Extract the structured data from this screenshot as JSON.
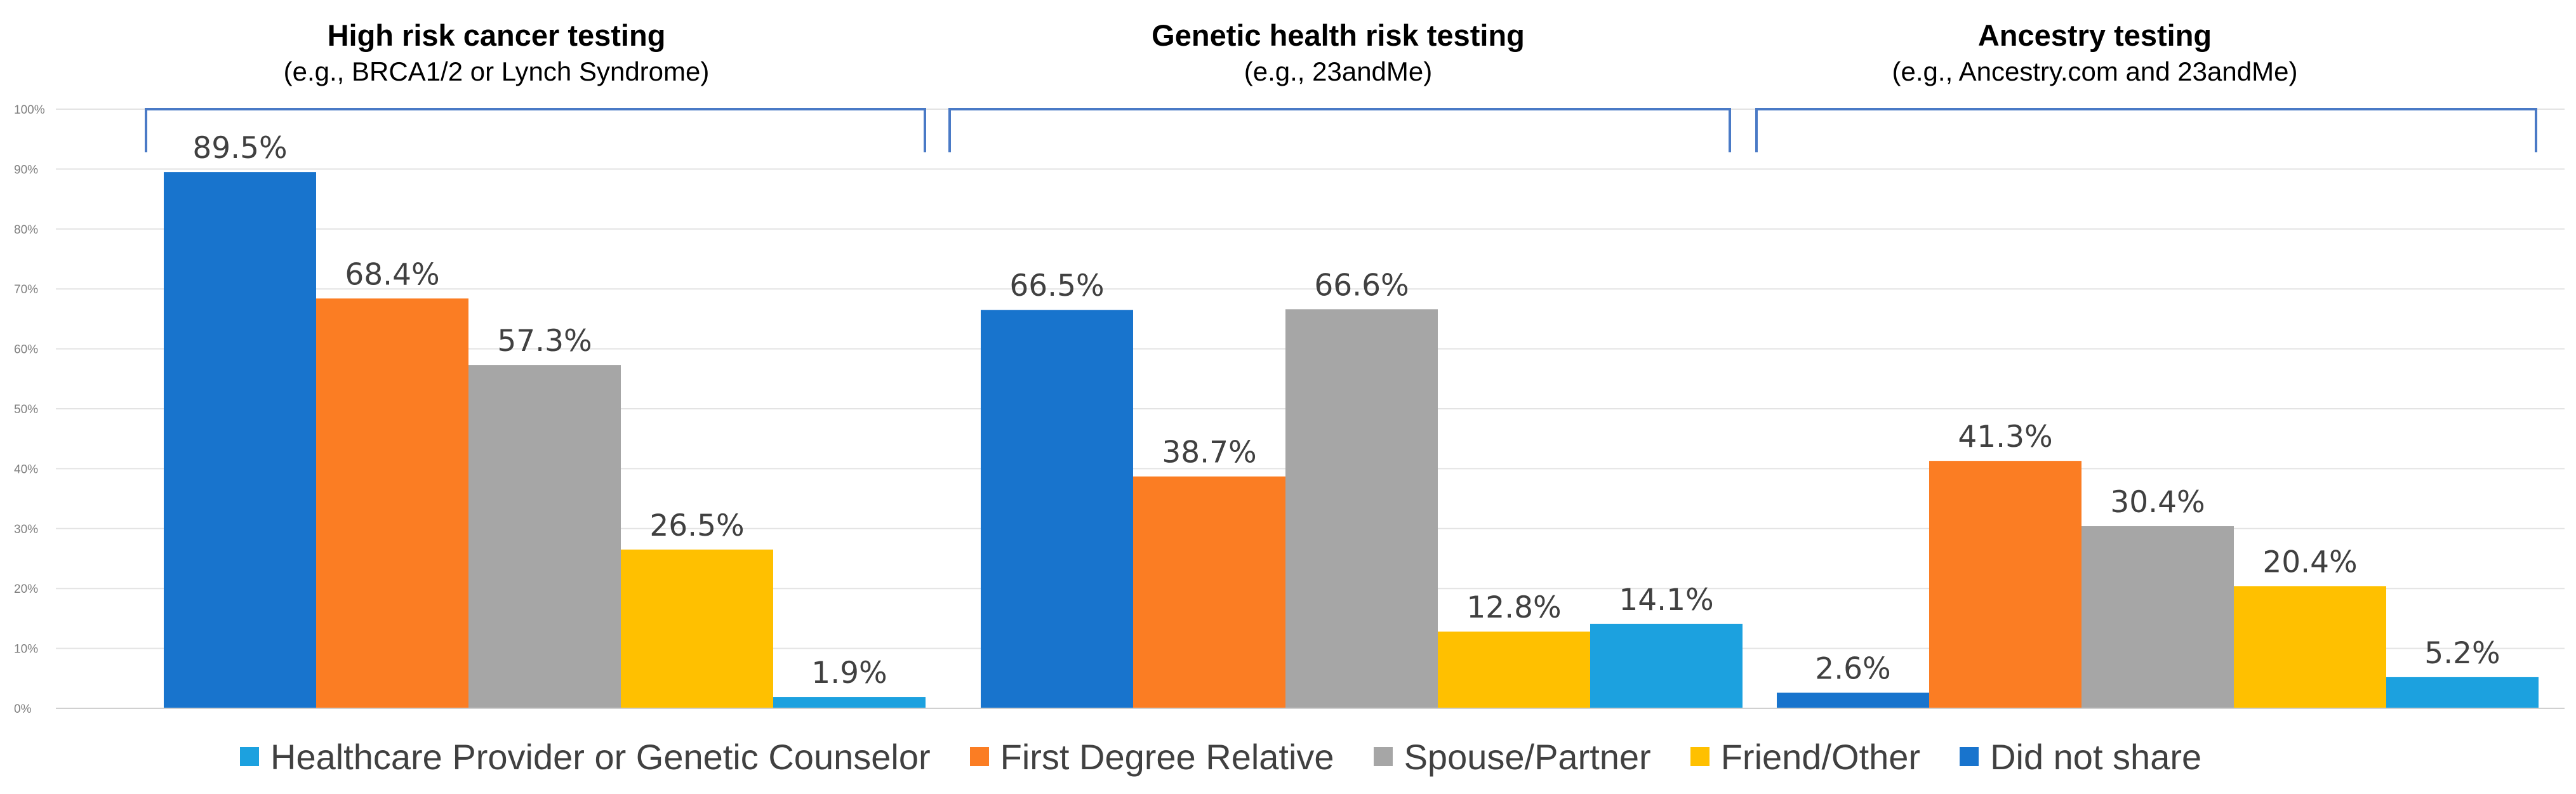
{
  "chart_data": {
    "type": "bar",
    "y_ticks": [
      "0%",
      "10%",
      "20%",
      "30%",
      "40%",
      "50%",
      "60%",
      "70%",
      "80%",
      "90%",
      "100%"
    ],
    "ylim": [
      0,
      100
    ],
    "grid": true,
    "panels": [
      {
        "title": "High risk cancer testing",
        "subtitle": "(e.g., BRCA1/2 or Lynch Syndrome)",
        "bars": [
          {
            "series": "Did not share",
            "value": 89.5,
            "label": "89.5%",
            "color": "#1874cd"
          },
          {
            "series": "First Degree Relative",
            "value": 68.4,
            "label": "68.4%",
            "color": "#fb7d23"
          },
          {
            "series": "Spouse/Partner",
            "value": 57.3,
            "label": "57.3%",
            "color": "#a6a6a6"
          },
          {
            "series": "Friend/Other",
            "value": 26.5,
            "label": "26.5%",
            "color": "#ffc000"
          },
          {
            "series": "Healthcare Provider or Genetic Counselor",
            "value": 1.9,
            "label": "1.9%",
            "color": "#1ca1df"
          }
        ]
      },
      {
        "title": "Genetic health risk testing",
        "subtitle": "(e.g., 23andMe)",
        "bars": [
          {
            "series": "Did not share",
            "value": 66.5,
            "label": "66.5%",
            "color": "#1874cd"
          },
          {
            "series": "First Degree Relative",
            "value": 38.7,
            "label": "38.7%",
            "color": "#fb7d23"
          },
          {
            "series": "Spouse/Partner",
            "value": 66.6,
            "label": "66.6%",
            "color": "#a6a6a6"
          },
          {
            "series": "Friend/Other",
            "value": 12.8,
            "label": "12.8%",
            "color": "#ffc000"
          },
          {
            "series": "Healthcare Provider or Genetic Counselor",
            "value": 14.1,
            "label": "14.1%",
            "color": "#1ca1df"
          }
        ]
      },
      {
        "title": "Ancestry testing",
        "subtitle": "(e.g., Ancestry.com and 23andMe)",
        "bars": [
          {
            "series": "Did not share",
            "value": 2.6,
            "label": "2.6%",
            "color": "#1874cd"
          },
          {
            "series": "First Degree Relative",
            "value": 41.3,
            "label": "41.3%",
            "color": "#fb7d23"
          },
          {
            "series": "Spouse/Partner",
            "value": 30.4,
            "label": "30.4%",
            "color": "#a6a6a6"
          },
          {
            "series": "Friend/Other",
            "value": 20.4,
            "label": "20.4%",
            "color": "#ffc000"
          },
          {
            "series": "Healthcare Provider or Genetic Counselor",
            "value": 5.2,
            "label": "5.2%",
            "color": "#1ca1df"
          }
        ]
      }
    ],
    "legend": [
      {
        "label": "Healthcare Provider or Genetic Counselor",
        "color": "#1ca1df"
      },
      {
        "label": "First Degree Relative",
        "color": "#fb7d23"
      },
      {
        "label": "Spouse/Partner",
        "color": "#a6a6a6"
      },
      {
        "label": "Friend/Other",
        "color": "#ffc000"
      },
      {
        "label": "Did not share",
        "color": "#1874cd"
      }
    ],
    "colors": {
      "grid": "#e3e3e3",
      "bracket": "#4a7ac6",
      "tick_text": "#7f7f7f",
      "label_text": "#404040",
      "title_text": "#000000"
    }
  }
}
